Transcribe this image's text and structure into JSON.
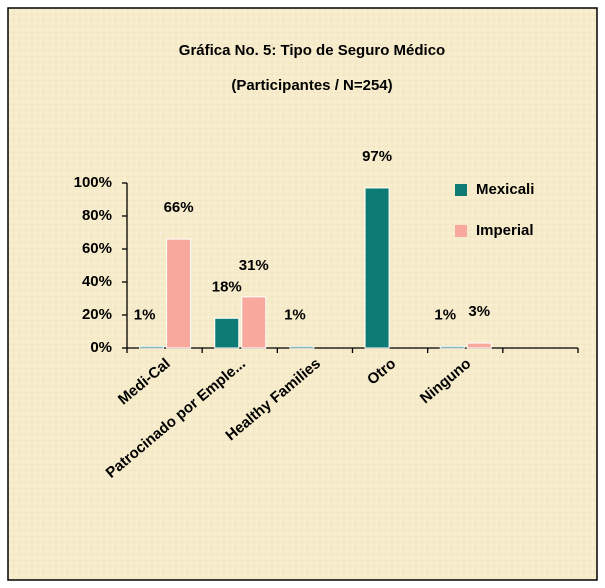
{
  "chart_data": {
    "type": "bar",
    "title": "Gráfica No. 5:  Tipo de Seguro Médico",
    "subtitle": "(Participantes / N=254)",
    "categories": [
      "Medi-Cal",
      "Patrocinado por Emple...",
      "Healthy Families",
      "Otro",
      "Ninguno",
      null
    ],
    "series": [
      {
        "name": "Mexicali",
        "color": "#0e7a74",
        "values": [
          1,
          18,
          1,
          97,
          1,
          null
        ],
        "value_labels": [
          "1%",
          "18%",
          "1%",
          "97%",
          "1%",
          null
        ]
      },
      {
        "name": "Imperial",
        "color": "#f8a89c",
        "values": [
          66,
          31,
          null,
          null,
          3,
          null
        ],
        "value_labels": [
          "66%",
          "31%",
          null,
          null,
          "3%",
          null
        ]
      }
    ],
    "ylim": [
      0,
      100
    ],
    "yticks": [
      {
        "value": 0,
        "label": "0%"
      },
      {
        "value": 20,
        "label": "20%"
      },
      {
        "value": 40,
        "label": "40%"
      },
      {
        "value": 60,
        "label": "60%"
      },
      {
        "value": 80,
        "label": "80%"
      },
      {
        "value": 100,
        "label": "100%"
      }
    ],
    "legend": "right"
  }
}
